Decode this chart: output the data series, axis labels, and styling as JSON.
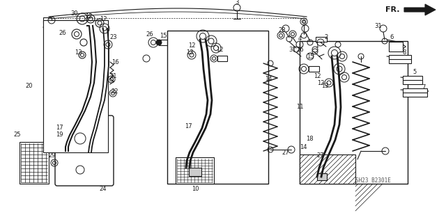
{
  "bg_color": "#ffffff",
  "diagram_color": "#1a1a1a",
  "fig_width": 6.4,
  "fig_height": 3.19,
  "watermark": "SH23 B2301E",
  "fr_label": "FR."
}
